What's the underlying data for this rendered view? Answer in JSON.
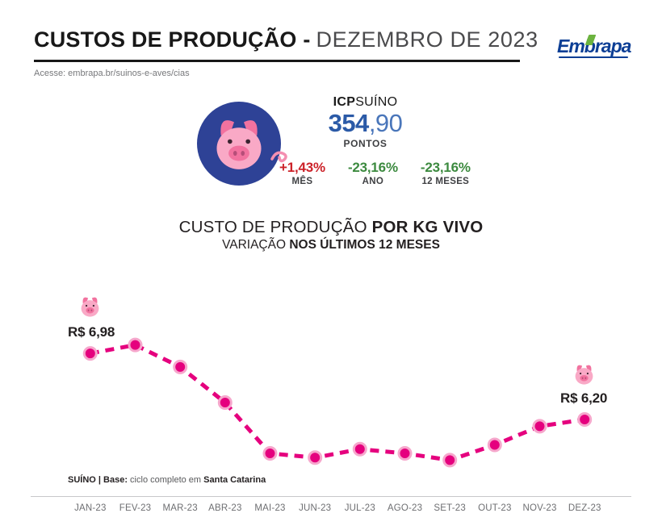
{
  "header": {
    "title_bold": "CUSTOS DE PRODUÇÃO -",
    "title_light": "DEZEMBRO DE 2023",
    "access_line": "Acesse: embrapa.br/suinos-e-aves/cias",
    "logo_text": "Embrapa"
  },
  "icp": {
    "label_bold": "ICP",
    "label_light": "SUÍNO",
    "value_int": "354",
    "value_dec": ",90",
    "unit": "PONTOS",
    "stats": [
      {
        "value": "+1,43%",
        "label": "MÊS",
        "color": "#cc2229"
      },
      {
        "value": "-23,16%",
        "label": "ANO",
        "color": "#3c8a3f"
      },
      {
        "value": "-23,16%",
        "label": "12 MESES",
        "color": "#3c8a3f"
      }
    ]
  },
  "section_title": {
    "line1_regular": "CUSTO DE PRODUÇÃO ",
    "line1_bold": "POR KG VIVO",
    "line2_regular": "VARIAÇÃO ",
    "line2_bold": "NOS ÚLTIMOS 12 MESES"
  },
  "chart_data": {
    "type": "line",
    "title": "CUSTO DE PRODUÇÃO POR KG VIVO",
    "subtitle": "VARIAÇÃO NOS ÚLTIMOS 12 MESES",
    "categories": [
      "JAN-23",
      "FEV-23",
      "MAR-23",
      "ABR-23",
      "MAI-23",
      "JUN-23",
      "JUL-23",
      "AGO-23",
      "SET-23",
      "OUT-23",
      "NOV-23",
      "DEZ-23"
    ],
    "values": [
      6.98,
      7.08,
      6.82,
      6.4,
      5.8,
      5.75,
      5.85,
      5.8,
      5.72,
      5.9,
      6.12,
      6.2
    ],
    "ylim": [
      5.4,
      7.4
    ],
    "grid": false,
    "legend": "none",
    "line_color": "#e5007e",
    "point_ring_color": "#f6a7cc",
    "first_point_label": "R$ 6,98",
    "last_point_label": "R$ 6,20"
  },
  "footer": {
    "base_bold": "SUÍNO | Base:",
    "base_regular": " ciclo completo em ",
    "base_location": "Santa Catarina"
  },
  "colors": {
    "accent_pink": "#e5007e",
    "icp_blue": "#2b5aa7",
    "stat_red": "#cc2229",
    "stat_green": "#3c8a3f",
    "logo_blue": "#0c3e95",
    "logo_green": "#6cb33f",
    "pig_circle_blue": "#2e4296"
  }
}
